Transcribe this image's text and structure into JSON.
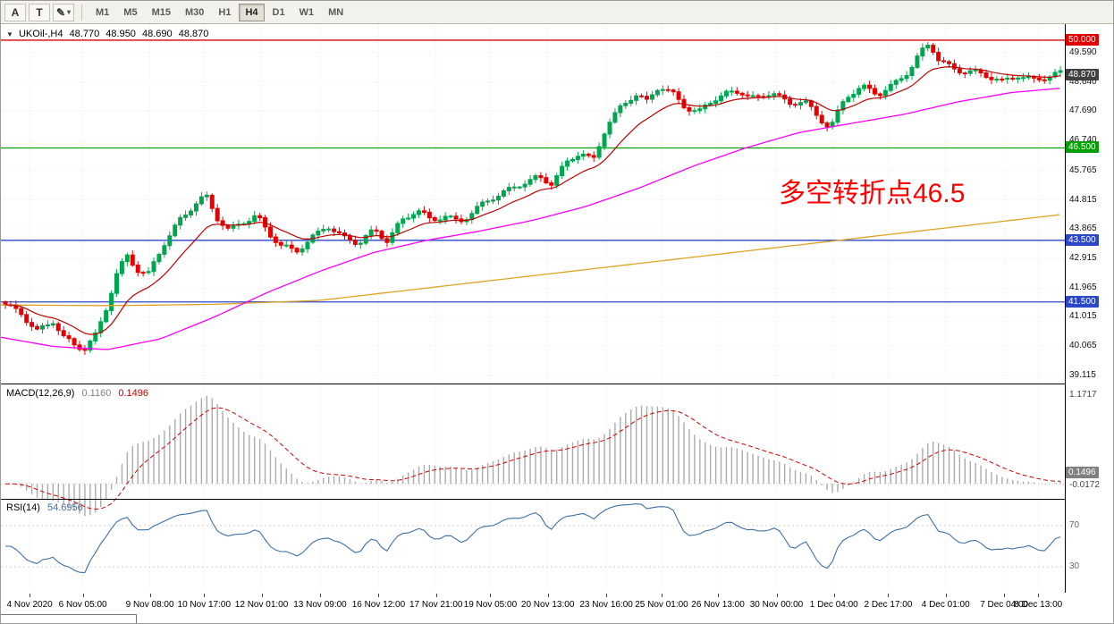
{
  "icons": {
    "chart_menu": "▼",
    "chevron_down": "▾",
    "pointer_tool": "A",
    "text_tool": "T",
    "draw_tool": "✎"
  },
  "toolbar": {
    "timeframes": [
      "M1",
      "M5",
      "M15",
      "M30",
      "H1",
      "H4",
      "D1",
      "W1",
      "MN"
    ],
    "active_timeframe": "H4"
  },
  "chart": {
    "symbol_title": "UKOil-,H4",
    "ohlc": {
      "open": "48.770",
      "high": "48.950",
      "low": "48.690",
      "close": "48.870"
    },
    "annotation": {
      "text": "多空转折点46.5",
      "color": "#FF0000"
    }
  },
  "indicators": {
    "macd": {
      "name": "MACD(12,26,9)",
      "value": "0.1160",
      "signal_value": "0.1496",
      "axis_ticks": [
        "1.1717",
        "-0.0172"
      ],
      "badge": "0.1496"
    },
    "rsi": {
      "name": "RSI(14)",
      "value": "54.6956",
      "levels": [
        "70",
        "30"
      ]
    }
  },
  "price_axis": {
    "ticks": [
      "49.590",
      "48.640",
      "47.690",
      "46.740",
      "45.765",
      "44.815",
      "43.865",
      "42.915",
      "41.965",
      "41.015",
      "40.065",
      "39.115"
    ],
    "badges": [
      {
        "text": "50.000",
        "price": 50.0,
        "bg": "#E00000"
      },
      {
        "text": "48.870",
        "price": 48.87,
        "bg": "#404040"
      },
      {
        "text": "46.500",
        "price": 46.5,
        "bg": "#00A000"
      },
      {
        "text": "43.500",
        "price": 43.5,
        "bg": "#2C46C8"
      },
      {
        "text": "41.500",
        "price": 41.5,
        "bg": "#2C46C8"
      }
    ]
  },
  "time_axis": {
    "labels": [
      {
        "text": "4 Nov 2020",
        "f": 0.027
      },
      {
        "text": "6 Nov 05:00",
        "f": 0.077
      },
      {
        "text": "9 Nov 08:00",
        "f": 0.14
      },
      {
        "text": "10 Nov 17:00",
        "f": 0.191
      },
      {
        "text": "12 Nov 01:00",
        "f": 0.245
      },
      {
        "text": "13 Nov 09:00",
        "f": 0.3
      },
      {
        "text": "16 Nov 12:00",
        "f": 0.355
      },
      {
        "text": "17 Nov 21:00",
        "f": 0.409
      },
      {
        "text": "19 Nov 05:00",
        "f": 0.46
      },
      {
        "text": "20 Nov 13:00",
        "f": 0.514
      },
      {
        "text": "23 Nov 16:00",
        "f": 0.569
      },
      {
        "text": "25 Nov 01:00",
        "f": 0.621
      },
      {
        "text": "26 Nov 13:00",
        "f": 0.674
      },
      {
        "text": "30 Nov 00:00",
        "f": 0.729
      },
      {
        "text": "1 Dec 04:00",
        "f": 0.783
      },
      {
        "text": "2 Dec 17:00",
        "f": 0.834
      },
      {
        "text": "4 Dec 01:00",
        "f": 0.888
      },
      {
        "text": "7 Dec 04:00",
        "f": 0.943
      },
      {
        "text": "8 Dec 13:00",
        "f": 0.975
      }
    ]
  },
  "chart_data": {
    "type": "candlestick",
    "symbol": "UKOil-",
    "timeframe": "H4",
    "title": "UKOil-,H4 48.770 48.950 48.690 48.870",
    "price_range_visible": [
      38.85,
      50.52
    ],
    "candles_count": 200,
    "close_path": [
      [
        0,
        41.35
      ],
      [
        0.015,
        41.15
      ],
      [
        0.03,
        40.6
      ],
      [
        0.045,
        40.9
      ],
      [
        0.055,
        40.3
      ],
      [
        0.065,
        40.05
      ],
      [
        0.075,
        39.95
      ],
      [
        0.085,
        40.4
      ],
      [
        0.095,
        41.3
      ],
      [
        0.105,
        42.4
      ],
      [
        0.115,
        43.0
      ],
      [
        0.125,
        42.5
      ],
      [
        0.135,
        42.3
      ],
      [
        0.15,
        43.4
      ],
      [
        0.165,
        44.2
      ],
      [
        0.18,
        44.7
      ],
      [
        0.19,
        44.9
      ],
      [
        0.2,
        44.2
      ],
      [
        0.212,
        43.8
      ],
      [
        0.225,
        44.15
      ],
      [
        0.238,
        44.35
      ],
      [
        0.25,
        43.7
      ],
      [
        0.262,
        43.25
      ],
      [
        0.275,
        43.1
      ],
      [
        0.29,
        43.6
      ],
      [
        0.305,
        44.05
      ],
      [
        0.32,
        43.55
      ],
      [
        0.335,
        43.35
      ],
      [
        0.35,
        43.85
      ],
      [
        0.362,
        43.55
      ],
      [
        0.375,
        44.15
      ],
      [
        0.39,
        44.45
      ],
      [
        0.403,
        44.1
      ],
      [
        0.417,
        44.3
      ],
      [
        0.43,
        44.15
      ],
      [
        0.445,
        44.5
      ],
      [
        0.46,
        44.8
      ],
      [
        0.475,
        45.05
      ],
      [
        0.49,
        45.4
      ],
      [
        0.505,
        45.6
      ],
      [
        0.518,
        45.35
      ],
      [
        0.532,
        45.95
      ],
      [
        0.545,
        46.35
      ],
      [
        0.557,
        46.1
      ],
      [
        0.57,
        47.3
      ],
      [
        0.583,
        47.8
      ],
      [
        0.597,
        48.2
      ],
      [
        0.608,
        47.95
      ],
      [
        0.62,
        48.55
      ],
      [
        0.633,
        48.3
      ],
      [
        0.645,
        47.85
      ],
      [
        0.657,
        47.6
      ],
      [
        0.67,
        48.0
      ],
      [
        0.683,
        48.25
      ],
      [
        0.697,
        48.4
      ],
      [
        0.712,
        48.1
      ],
      [
        0.727,
        48.3
      ],
      [
        0.742,
        47.85
      ],
      [
        0.757,
        48.1
      ],
      [
        0.77,
        47.55
      ],
      [
        0.782,
        47.2
      ],
      [
        0.797,
        48.1
      ],
      [
        0.812,
        48.45
      ],
      [
        0.827,
        48.3
      ],
      [
        0.842,
        48.6
      ],
      [
        0.857,
        49.0
      ],
      [
        0.868,
        49.55
      ],
      [
        0.876,
        49.85
      ],
      [
        0.885,
        49.35
      ],
      [
        0.9,
        49.1
      ],
      [
        0.915,
        49.0
      ],
      [
        0.93,
        48.8
      ],
      [
        0.945,
        48.6
      ],
      [
        0.96,
        48.9
      ],
      [
        0.975,
        48.75
      ],
      [
        1,
        48.87
      ]
    ],
    "hlines": [
      {
        "price": 50.0,
        "color": "#E00000",
        "label": "50.000"
      },
      {
        "price": 46.5,
        "color": "#00A000",
        "label": "46.500"
      },
      {
        "price": 43.5,
        "color": "#2C46C8",
        "label": "43.500"
      },
      {
        "price": 41.5,
        "color": "#2C46C8",
        "label": "41.500"
      }
    ],
    "moving_averages": [
      {
        "name": "fast",
        "color": "#C00000",
        "method": "ema",
        "period": 13
      },
      {
        "name": "mid",
        "color": "#FF00FF",
        "path": [
          [
            0,
            40.35
          ],
          [
            0.05,
            40.05
          ],
          [
            0.1,
            39.95
          ],
          [
            0.15,
            40.3
          ],
          [
            0.2,
            41.0
          ],
          [
            0.25,
            41.8
          ],
          [
            0.3,
            42.5
          ],
          [
            0.35,
            43.1
          ],
          [
            0.4,
            43.5
          ],
          [
            0.45,
            43.8
          ],
          [
            0.5,
            44.15
          ],
          [
            0.55,
            44.6
          ],
          [
            0.6,
            45.2
          ],
          [
            0.65,
            45.9
          ],
          [
            0.7,
            46.5
          ],
          [
            0.75,
            47.0
          ],
          [
            0.8,
            47.3
          ],
          [
            0.85,
            47.6
          ],
          [
            0.9,
            48.0
          ],
          [
            0.95,
            48.3
          ],
          [
            1,
            48.45
          ]
        ]
      },
      {
        "name": "slow",
        "color": "#DFA326",
        "path": [
          [
            0,
            41.4
          ],
          [
            0.1,
            41.38
          ],
          [
            0.2,
            41.42
          ],
          [
            0.3,
            41.55
          ],
          [
            0.4,
            41.95
          ],
          [
            0.5,
            42.35
          ],
          [
            0.6,
            42.75
          ],
          [
            0.7,
            43.15
          ],
          [
            0.8,
            43.55
          ],
          [
            0.9,
            43.95
          ],
          [
            1,
            44.35
          ]
        ]
      }
    ],
    "macd": {
      "fast": 12,
      "slow": 26,
      "signal": 9,
      "display_max": 1.17,
      "current": 0.116,
      "current_signal": 0.1496
    },
    "rsi": {
      "period": 14,
      "current": 54.6956
    }
  }
}
